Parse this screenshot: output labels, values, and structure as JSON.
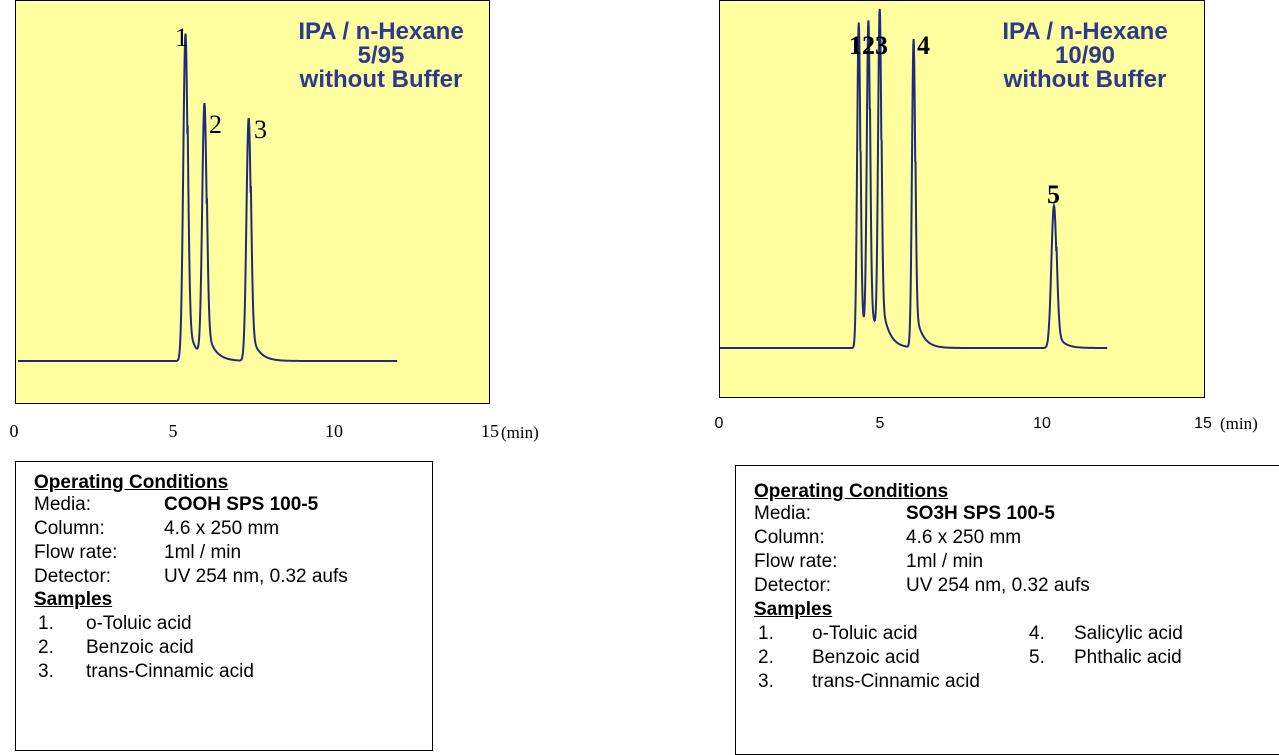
{
  "chart_data": [
    {
      "type": "line",
      "title": "IPA / n-Hexane\n5/95\nwithout Buffer",
      "title_lines": [
        "IPA / n-Hexane",
        "5/95",
        "without Buffer"
      ],
      "x_ticks": [
        "0",
        "5",
        "10",
        "15"
      ],
      "x_unit": "(min)",
      "xlim": [
        0,
        15
      ],
      "peaks": [
        {
          "label": "1",
          "rt": 5.3,
          "height": 0.93
        },
        {
          "label": "2",
          "rt": 5.9,
          "height": 0.72
        },
        {
          "label": "3",
          "rt": 7.3,
          "height": 0.69
        }
      ],
      "trace_end": 12.0
    },
    {
      "type": "line",
      "title": "IPA / n-Hexane\n10/90\nwithout Buffer",
      "title_lines": [
        "IPA / n-Hexane",
        "10/90",
        "without Buffer"
      ],
      "x_ticks": [
        "0",
        "5",
        "10",
        "15"
      ],
      "x_unit": "(min)",
      "xlim": [
        0,
        15
      ],
      "peak_labels": [
        "123",
        "4",
        "5"
      ],
      "peaks": [
        {
          "label": "1",
          "rt": 4.3,
          "height": 0.96
        },
        {
          "label": "2",
          "rt": 4.6,
          "height": 0.93
        },
        {
          "label": "3",
          "rt": 4.95,
          "height": 0.97
        },
        {
          "label": "4",
          "rt": 6.0,
          "height": 0.91
        },
        {
          "label": "5",
          "rt": 10.35,
          "height": 0.42
        }
      ],
      "trace_end": 12.0
    }
  ],
  "conditions": [
    {
      "heading": "Operating Conditions",
      "media_label": "Media:",
      "media_value": "COOH SPS 100-5",
      "column_label": "Column:",
      "column_value": "4.6 x 250 mm",
      "flow_label": "Flow rate:",
      "flow_value": "1ml / min",
      "detector_label": "Detector:",
      "detector_value": "UV 254 nm, 0.32 aufs",
      "samples_heading": "Samples",
      "samples": [
        {
          "num": "1.",
          "name": "o-Toluic acid"
        },
        {
          "num": "2.",
          "name": "Benzoic acid"
        },
        {
          "num": "3.",
          "name": "trans-Cinnamic acid"
        }
      ]
    },
    {
      "heading": "Operating Conditions",
      "media_label": "Media:",
      "media_value": "SO3H SPS 100-5",
      "column_label": "Column:",
      "column_value": "4.6 x 250 mm",
      "flow_label": "Flow rate:",
      "flow_value": "1ml / min",
      "detector_label": "Detector:",
      "detector_value": "UV 254 nm, 0.32 aufs",
      "samples_heading": "Samples",
      "samples": [
        {
          "num": "1.",
          "name": "o-Toluic acid"
        },
        {
          "num": "2.",
          "name": "Benzoic acid"
        },
        {
          "num": "3.",
          "name": "trans-Cinnamic acid"
        },
        {
          "num": "4.",
          "name": "Salicylic acid"
        },
        {
          "num": "5.",
          "name": "Phthalic acid"
        }
      ]
    }
  ],
  "colors": {
    "plot_bg": "#ffffa0",
    "trace": "#1f2a7a",
    "title": "#2b3a8f"
  }
}
